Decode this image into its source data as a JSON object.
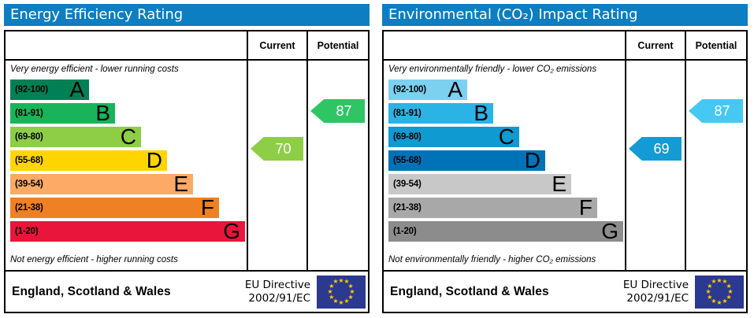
{
  "colors": {
    "title_bar_bg": "#0d7ec1",
    "title_text": "#ffffff",
    "border": "#000000",
    "eu_flag_bg": "#2b3990",
    "eu_star": "#ffcc00"
  },
  "chart_data": [
    {
      "type": "bar",
      "title": "Energy Efficiency Rating",
      "columns": {
        "current": "Current",
        "potential": "Potential"
      },
      "top_note": "Very energy efficient - lower running costs",
      "bottom_note": "Not energy efficient - higher running costs",
      "bands": [
        {
          "letter": "A",
          "range": "(92-100)",
          "min": 92,
          "max": 100,
          "color": "#008054"
        },
        {
          "letter": "B",
          "range": "(81-91)",
          "min": 81,
          "max": 91,
          "color": "#19b459"
        },
        {
          "letter": "C",
          "range": "(69-80)",
          "min": 69,
          "max": 80,
          "color": "#8dce46"
        },
        {
          "letter": "D",
          "range": "(55-68)",
          "min": 55,
          "max": 68,
          "color": "#ffd500"
        },
        {
          "letter": "E",
          "range": "(39-54)",
          "min": 39,
          "max": 54,
          "color": "#fcaa65"
        },
        {
          "letter": "F",
          "range": "(21-38)",
          "min": 21,
          "max": 38,
          "color": "#ef8023"
        },
        {
          "letter": "G",
          "range": "(1-20)",
          "min": 1,
          "max": 20,
          "color": "#e9153b"
        }
      ],
      "current": {
        "value": 70,
        "band": "C",
        "color": "#8dce46"
      },
      "potential": {
        "value": 87,
        "band": "B",
        "color": "#2fc464"
      },
      "footer": {
        "region": "England, Scotland & Wales",
        "directive": [
          "EU Directive",
          "2002/91/EC"
        ]
      }
    },
    {
      "type": "bar",
      "title": "Environmental (CO₂) Impact Rating",
      "columns": {
        "current": "Current",
        "potential": "Potential"
      },
      "top_note": "Very environmentally friendly - lower CO₂ emissions",
      "bottom_note": "Not environmentally friendly - higher CO₂ emissions",
      "bands": [
        {
          "letter": "A",
          "range": "(92-100)",
          "min": 92,
          "max": 100,
          "color": "#7cd0f0"
        },
        {
          "letter": "B",
          "range": "(81-91)",
          "min": 81,
          "max": 91,
          "color": "#2bb3e6"
        },
        {
          "letter": "C",
          "range": "(69-80)",
          "min": 69,
          "max": 80,
          "color": "#0f9ad2"
        },
        {
          "letter": "D",
          "range": "(55-68)",
          "min": 55,
          "max": 68,
          "color": "#0073b8"
        },
        {
          "letter": "E",
          "range": "(39-54)",
          "min": 39,
          "max": 54,
          "color": "#c8c8c8"
        },
        {
          "letter": "F",
          "range": "(21-38)",
          "min": 21,
          "max": 38,
          "color": "#a8a8a8"
        },
        {
          "letter": "G",
          "range": "(1-20)",
          "min": 1,
          "max": 20,
          "color": "#8c8c8c"
        }
      ],
      "current": {
        "value": 69,
        "band": "C",
        "color": "#149bd3"
      },
      "potential": {
        "value": 87,
        "band": "B",
        "color": "#45c8f2"
      },
      "footer": {
        "region": "England, Scotland & Wales",
        "directive": [
          "EU Directive",
          "2002/91/EC"
        ]
      }
    }
  ]
}
